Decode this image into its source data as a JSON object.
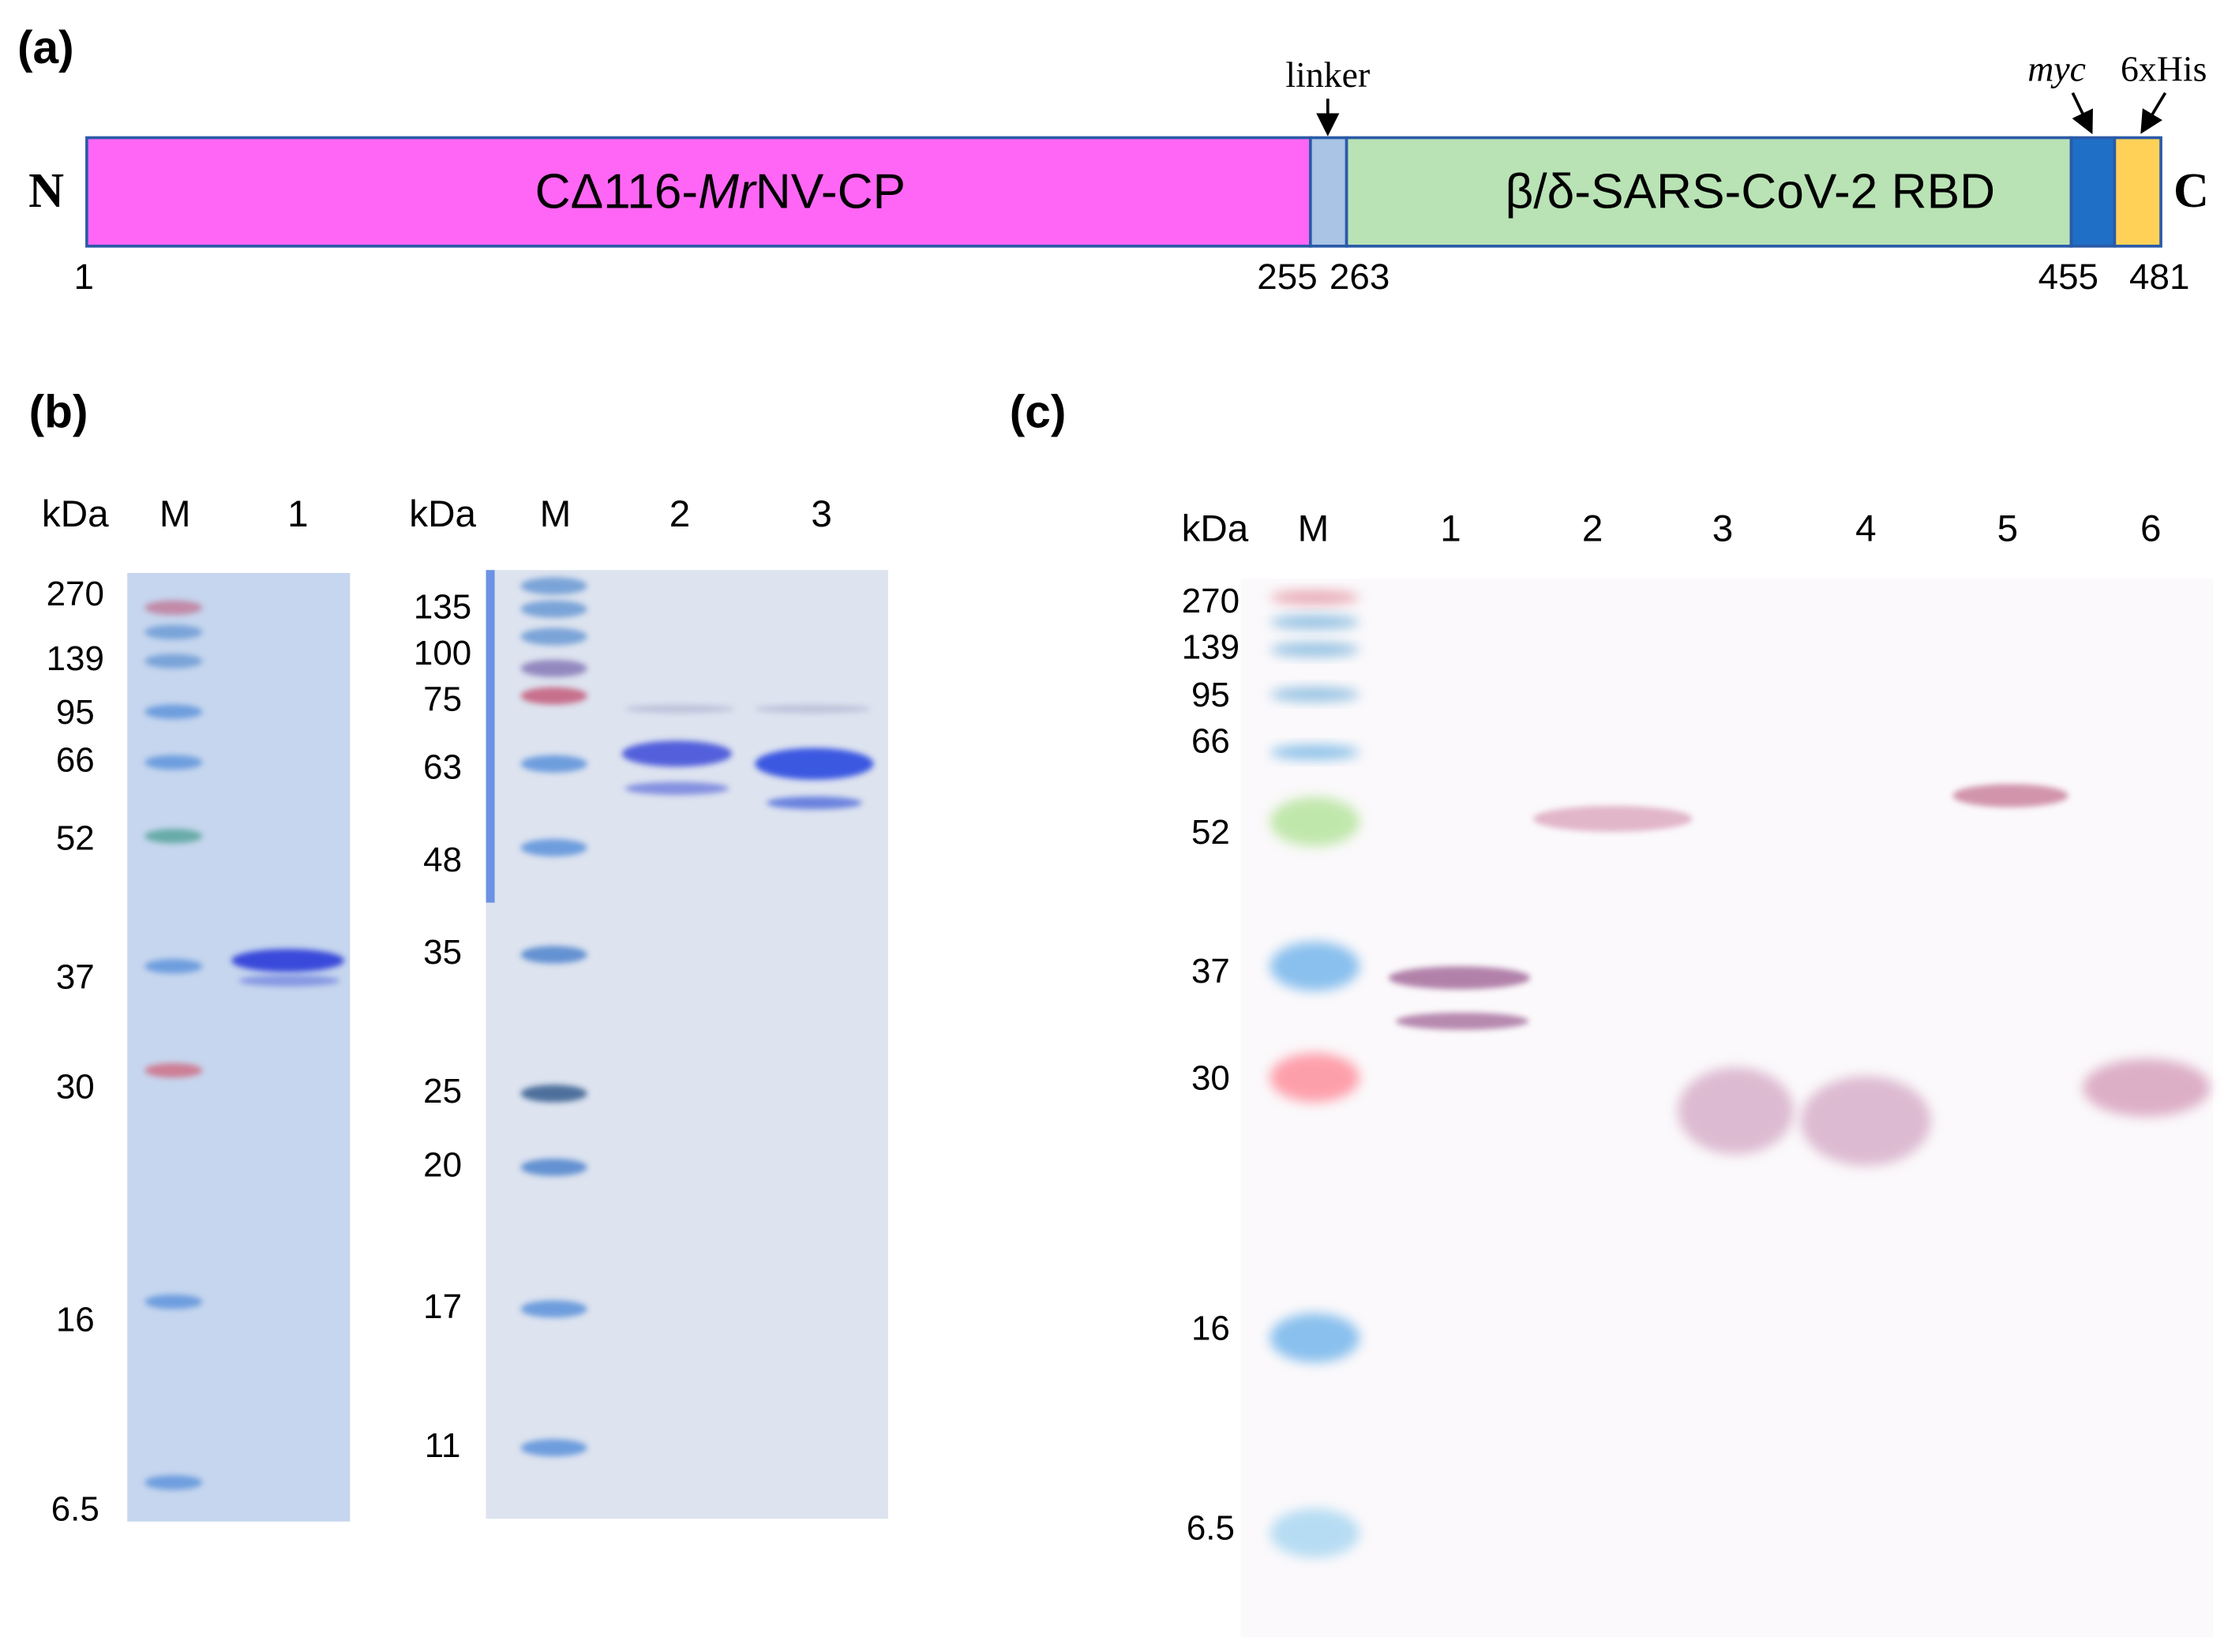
{
  "panel_a": {
    "label": "(a)",
    "n_terminus": "N",
    "c_terminus": "C",
    "segments": [
      {
        "parts": [
          "CΔ116-",
          "Mr",
          "NV-CP"
        ]
      },
      {
        "parts": [
          "β/δ-SARS-CoV-2 RBD"
        ]
      }
    ],
    "callouts": [
      "linker",
      "myc",
      "6xHis"
    ],
    "positions": [
      1,
      255,
      263,
      455,
      481
    ]
  },
  "panel_b": {
    "label": "(b)",
    "gels": [
      {
        "unit": "kDa",
        "lanes": [
          "M",
          "1"
        ],
        "markers": [
          270,
          139,
          95,
          66,
          52,
          37,
          30,
          16,
          6.5
        ]
      },
      {
        "unit": "kDa",
        "lanes": [
          "M",
          "2",
          "3"
        ],
        "markers": [
          135,
          100,
          75,
          63,
          48,
          35,
          25,
          20,
          17,
          11
        ]
      }
    ]
  },
  "panel_c": {
    "label": "(c)",
    "unit": "kDa",
    "lanes": [
      "M",
      "1",
      "2",
      "3",
      "4",
      "5",
      "6"
    ],
    "markers": [
      270,
      139,
      95,
      66,
      52,
      37,
      30,
      16,
      6.5
    ]
  }
}
